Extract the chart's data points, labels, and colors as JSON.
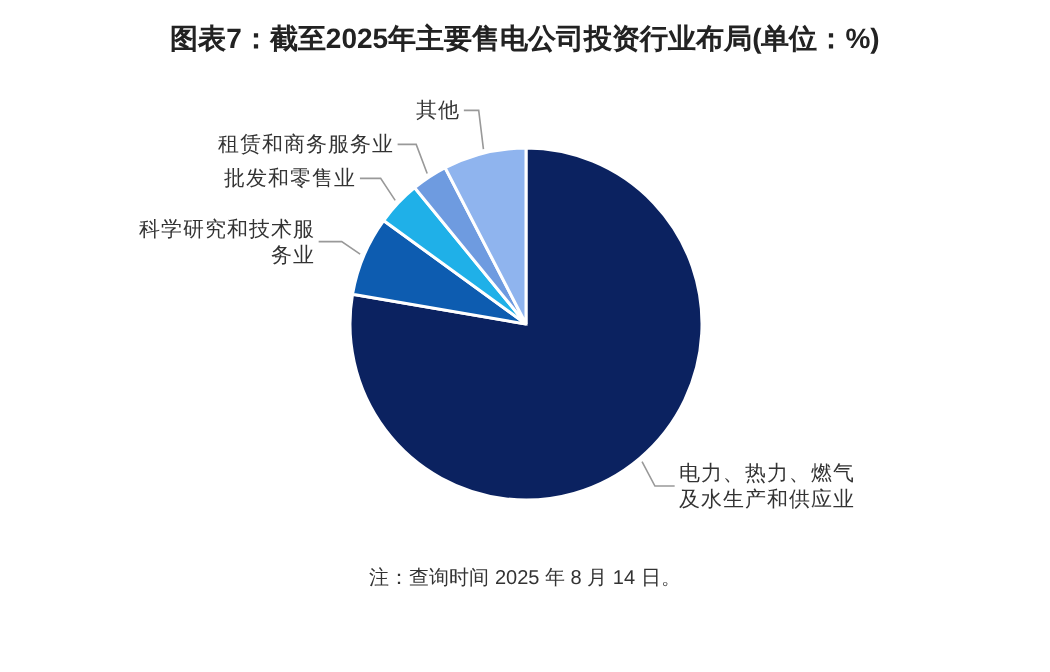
{
  "chart_data": {
    "type": "pie",
    "title": "图表7：截至2025年主要售电公司投资行业布局(单位：%)",
    "categories": [
      "电力、热力、燃气及水生产和供应业",
      "科学研究和技术服务业",
      "批发和零售业",
      "租赁和商务服务业",
      "其他"
    ],
    "values": [
      77.7,
      7.3,
      4.1,
      3.3,
      7.6
    ],
    "colors": [
      "#0b2260",
      "#0d5cb0",
      "#1fb0e8",
      "#6e9be0",
      "#8fb4ee"
    ],
    "legend": false,
    "annotations": [
      "注：查询时间 2025 年 8 月 14 日。"
    ]
  }
}
